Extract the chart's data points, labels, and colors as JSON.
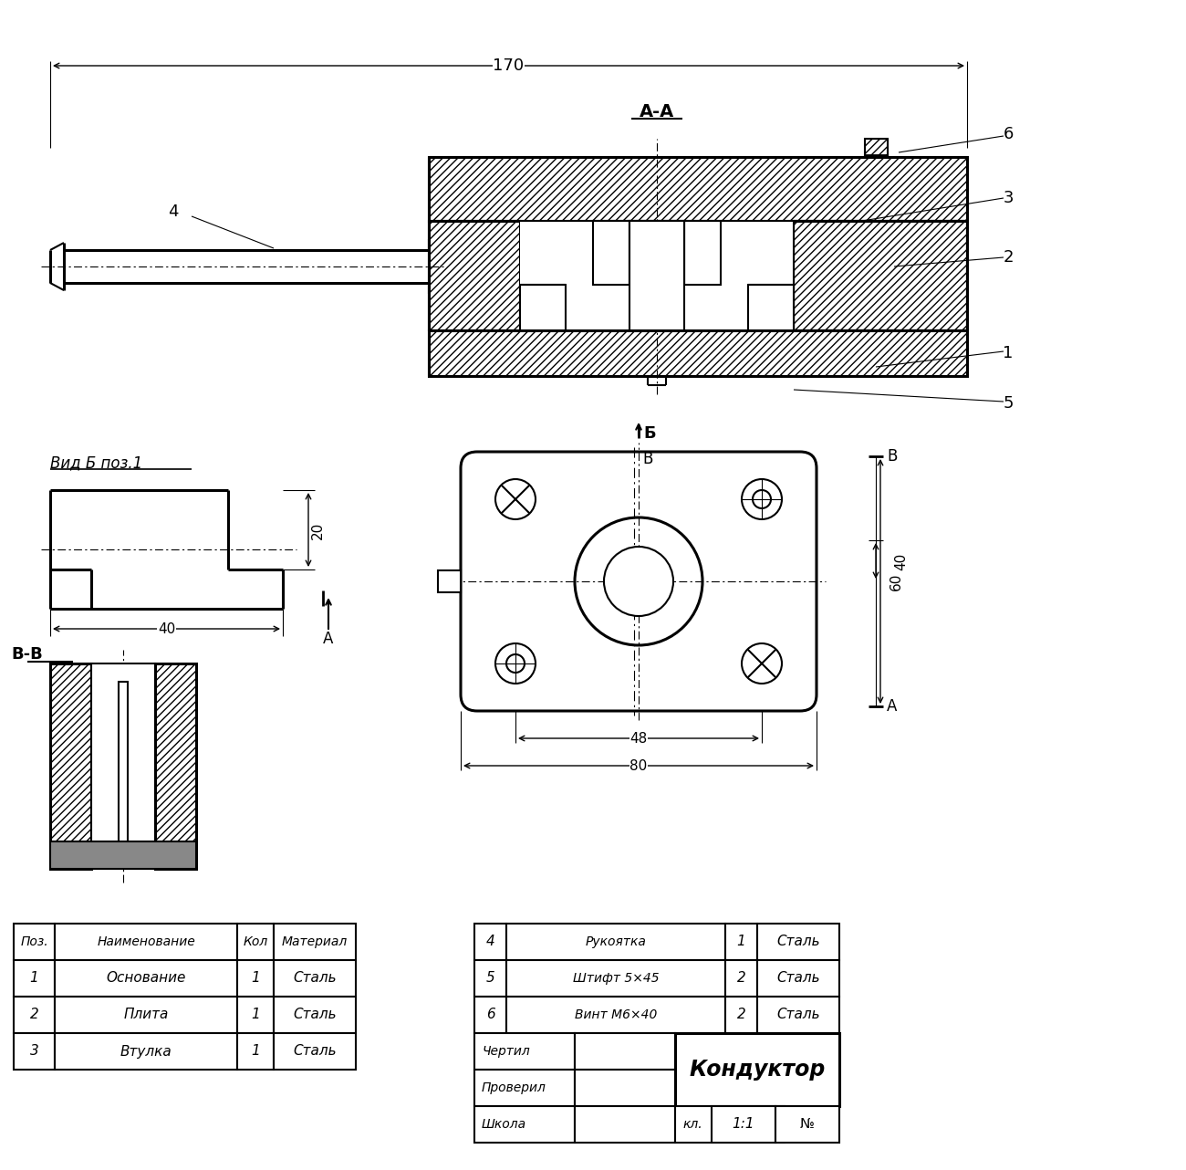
{
  "bg_color": "#ffffff",
  "title": "Кондуктор",
  "rows_left": [
    [
      "1",
      "Основание",
      "1",
      "Сталь"
    ],
    [
      "2",
      "Плита",
      "1",
      "Сталь"
    ],
    [
      "3",
      "Втулка",
      "1",
      "Сталь"
    ]
  ],
  "rows_right": [
    [
      "4",
      "Рукоятка",
      "1",
      "Сталь"
    ],
    [
      "5",
      "Штифт 5×45",
      "2",
      "Сталь"
    ],
    [
      "6",
      "Винт М6×40",
      "2",
      "Сталь"
    ]
  ],
  "headers_left": [
    "Поз.",
    "Наименование",
    "Кол",
    "Материал"
  ],
  "label_AA": "А-А",
  "label_BB": "В-В",
  "label_vid": "Вид Б поз.1",
  "dim_170": "170",
  "dim_20": "20",
  "dim_40": "40",
  "dim_48": "48",
  "dim_60": "60",
  "dim_80": "80"
}
